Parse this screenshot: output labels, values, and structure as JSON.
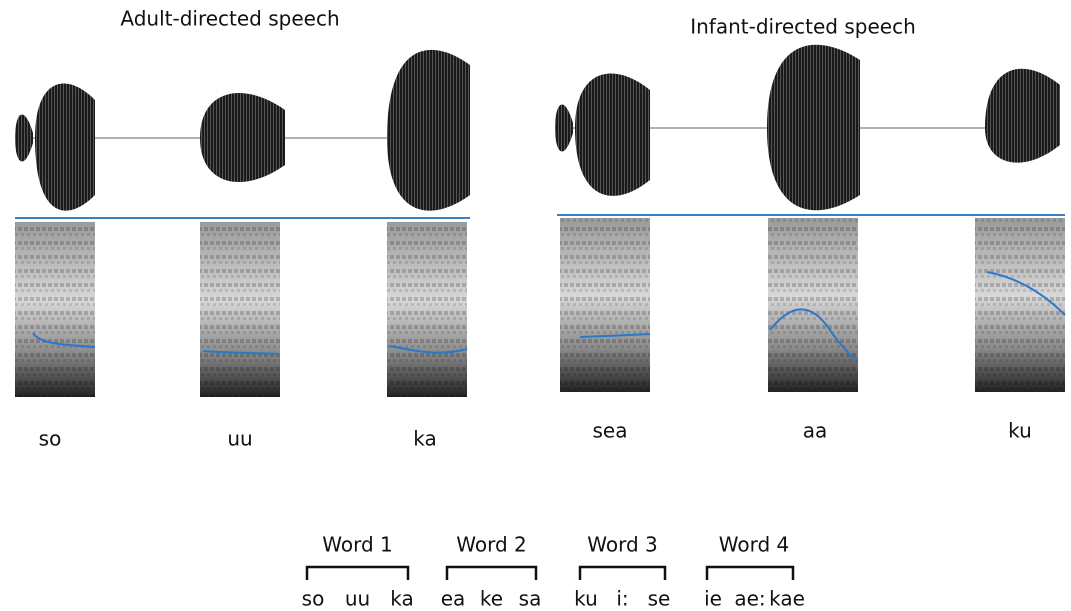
{
  "panels": [
    {
      "title": "Adult-directed speech",
      "syllables": [
        "so",
        "uu",
        "ka"
      ]
    },
    {
      "title": "Infant-directed speech",
      "syllables": [
        "sea",
        "aa",
        "ku"
      ]
    }
  ],
  "words": [
    {
      "label": "Word 1",
      "syllables": [
        "so",
        "uu",
        "ka"
      ]
    },
    {
      "label": "Word 2",
      "syllables": [
        "ea",
        "ke",
        "sa"
      ]
    },
    {
      "label": "Word 3",
      "syllables": [
        "ku",
        "i:",
        "se"
      ]
    },
    {
      "label": "Word 4",
      "syllables": [
        "ie",
        "ae:",
        "kae"
      ]
    }
  ]
}
